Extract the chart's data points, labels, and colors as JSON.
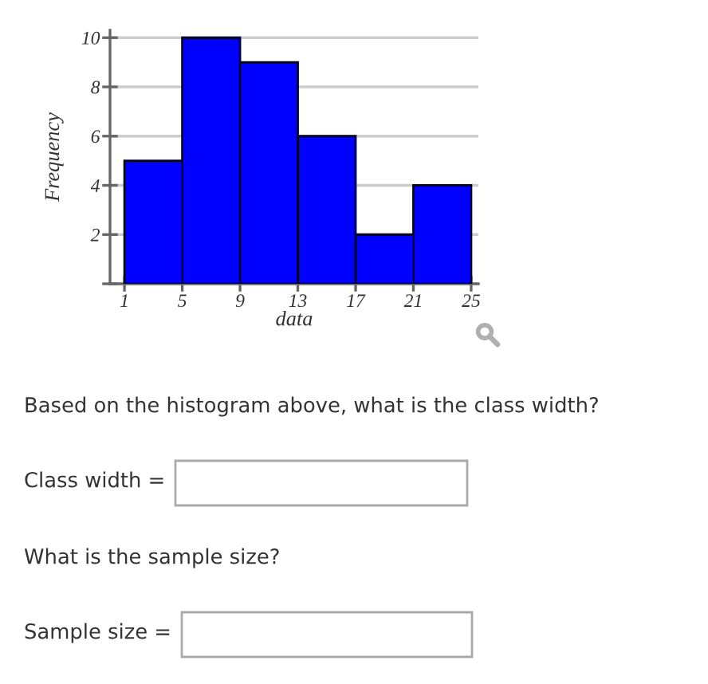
{
  "chart_data": {
    "type": "histogram",
    "xlabel": "data",
    "ylabel": "Frequency",
    "bins": [
      1,
      5,
      9,
      13,
      17,
      21,
      25
    ],
    "values": [
      5,
      10,
      9,
      6,
      2,
      4
    ],
    "color": "#0000ff",
    "xlim": [
      0,
      25.5
    ],
    "ylim": [
      0,
      10.3
    ],
    "xticks": [
      1,
      5,
      9,
      13,
      17,
      21,
      25
    ],
    "yticks": [
      {
        "value": 0,
        "label": null
      },
      2,
      4,
      6,
      8,
      10
    ],
    "grid": "y",
    "annotations": [
      "Based on the histogram above, what is the class width?",
      "Class width =",
      "What is the sample size?",
      "Sample size ="
    ]
  }
}
